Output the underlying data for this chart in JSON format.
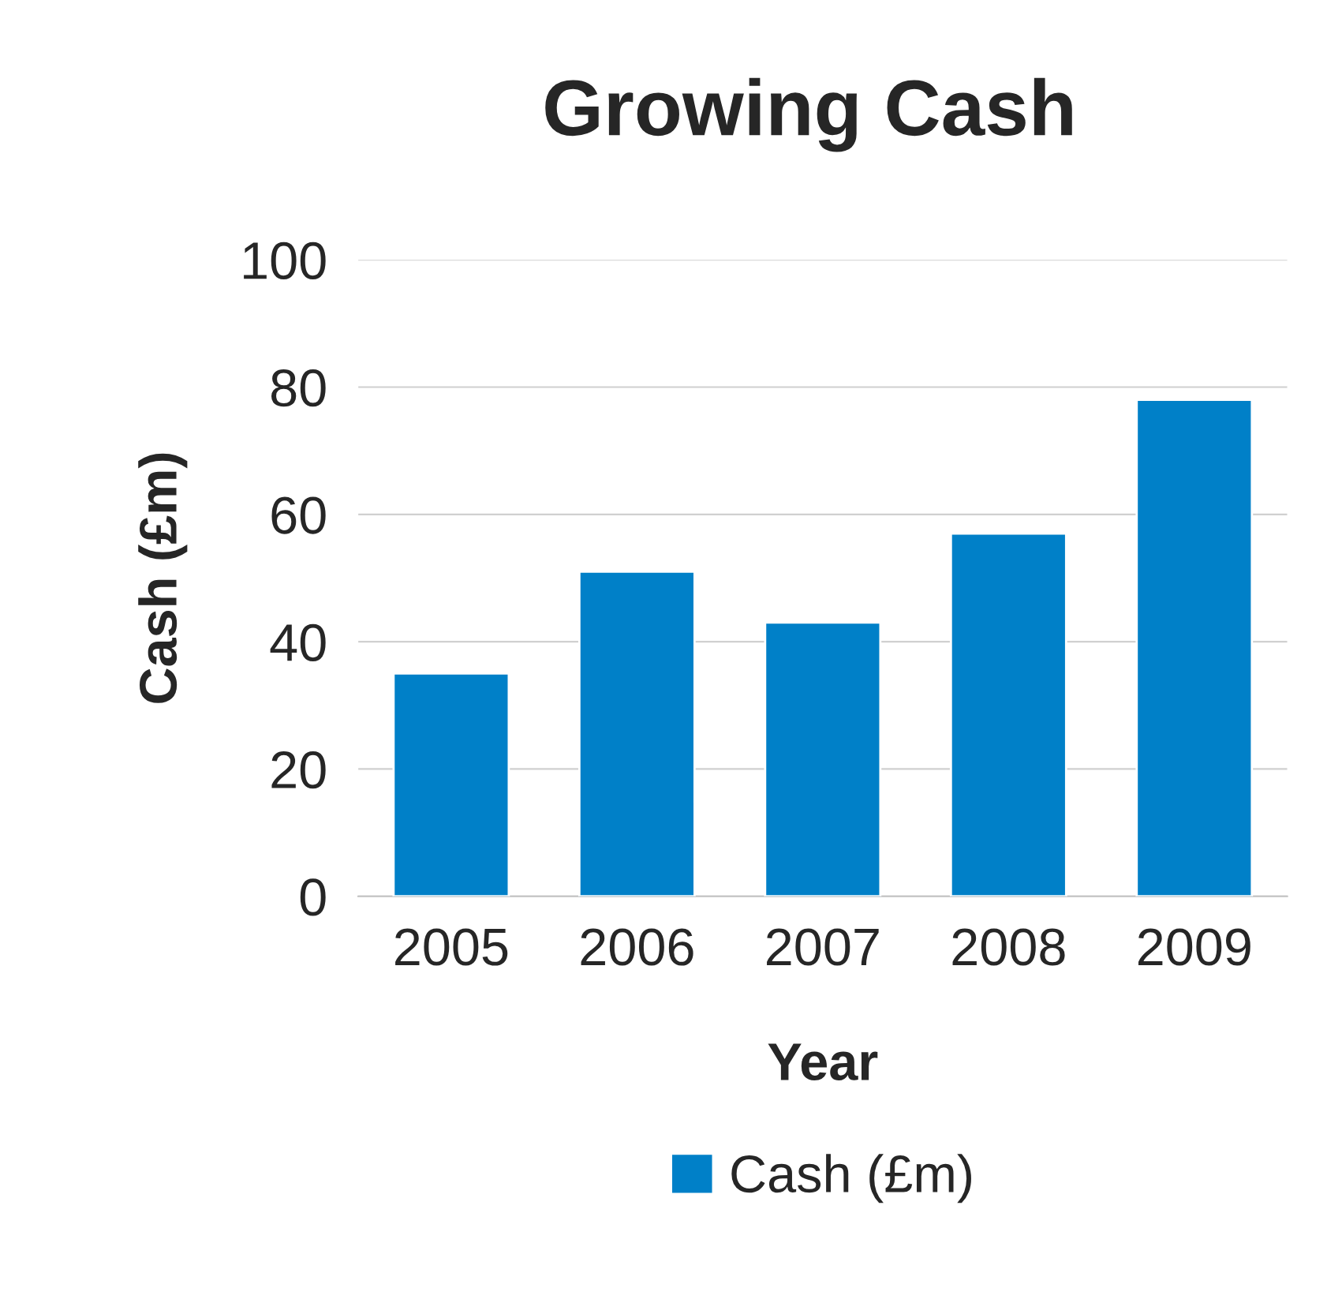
{
  "chart_data": {
    "type": "bar",
    "title": "Growing Cash",
    "xlabel": "Year",
    "ylabel": "Cash (£m)",
    "categories": [
      "2005",
      "2006",
      "2007",
      "2008",
      "2009"
    ],
    "series": [
      {
        "name": "Cash (£m)",
        "color": "#0080c8",
        "values": [
          35,
          51,
          43,
          57,
          78
        ]
      }
    ],
    "ylim": [
      0,
      100
    ],
    "yticks": [
      0,
      20,
      40,
      60,
      80,
      100
    ],
    "grid": "y",
    "legend": "bottom"
  }
}
